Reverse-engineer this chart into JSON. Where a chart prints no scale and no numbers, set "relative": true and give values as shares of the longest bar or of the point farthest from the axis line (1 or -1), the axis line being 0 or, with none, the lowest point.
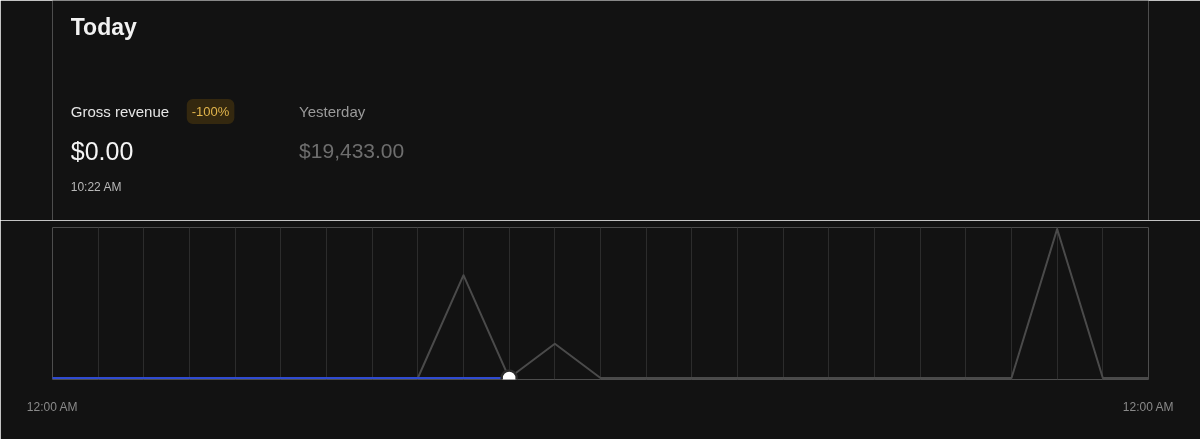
{
  "chart_data": {
    "type": "line",
    "title": "Today",
    "annotations": [
      "Gross revenue",
      "-100%",
      "$0.00",
      "10:22 AM",
      "Yesterday",
      "$19,433.00"
    ],
    "relative": true,
    "xlim": [
      0,
      24
    ],
    "xticks": [
      {
        "value": 0,
        "label": "12:00 AM"
      },
      {
        "value": 1,
        "label": null
      },
      {
        "value": 2,
        "label": null
      },
      {
        "value": 3,
        "label": null
      },
      {
        "value": 4,
        "label": null
      },
      {
        "value": 5,
        "label": null
      },
      {
        "value": 6,
        "label": null
      },
      {
        "value": 7,
        "label": null
      },
      {
        "value": 8,
        "label": null
      },
      {
        "value": 9,
        "label": null
      },
      {
        "value": 10,
        "label": null
      },
      {
        "value": 11,
        "label": null
      },
      {
        "value": 12,
        "label": null
      },
      {
        "value": 13,
        "label": null
      },
      {
        "value": 14,
        "label": null
      },
      {
        "value": 15,
        "label": null
      },
      {
        "value": 16,
        "label": null
      },
      {
        "value": 17,
        "label": null
      },
      {
        "value": 18,
        "label": null
      },
      {
        "value": 19,
        "label": null
      },
      {
        "value": 20,
        "label": null
      },
      {
        "value": 21,
        "label": null
      },
      {
        "value": 22,
        "label": null
      },
      {
        "value": 23,
        "label": null
      },
      {
        "value": 24,
        "label": "12:00 AM"
      }
    ],
    "grid": "x",
    "tick_labels": "x",
    "series": [
      {
        "color": "#4a4a4a",
        "x": [
          0,
          1,
          2,
          3,
          4,
          5,
          6,
          7,
          8,
          9,
          10,
          11,
          12,
          13,
          14,
          15,
          16,
          17,
          18,
          19,
          20,
          21,
          22,
          23,
          24
        ],
        "values": [
          0,
          0,
          0,
          0,
          0,
          0,
          0,
          0,
          0,
          0.69,
          0,
          0.23,
          0,
          0,
          0,
          0,
          0,
          0,
          0,
          0,
          0,
          0,
          1,
          0,
          0
        ]
      },
      {
        "color": "#2f4bd1",
        "x": [
          0,
          1,
          2,
          3,
          4,
          5,
          6,
          7,
          8,
          9,
          10
        ],
        "values": [
          0,
          0,
          0,
          0,
          0,
          0,
          0,
          0,
          0,
          0,
          0
        ]
      },
      {
        "type": "scatter",
        "color": "#ffffff",
        "x": [
          10
        ],
        "values": [
          0
        ]
      }
    ]
  }
}
